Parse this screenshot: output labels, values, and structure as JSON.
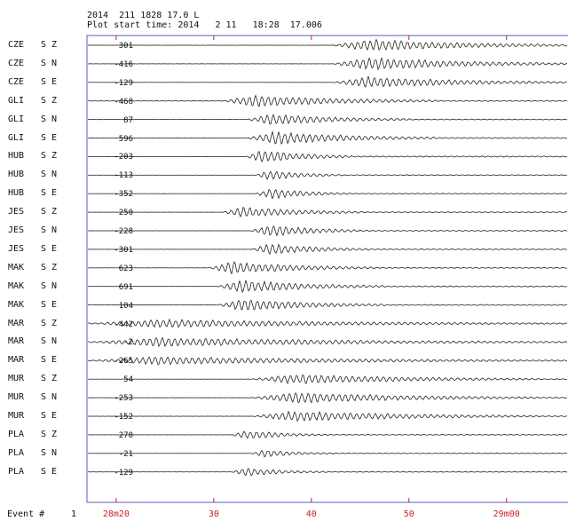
{
  "header": {
    "line1": "2014  211 1828 17.0 L",
    "line2": "Plot start time: 2014   2 11   18:28  17.006"
  },
  "channels": [
    {
      "station": "CZE",
      "comp": "S Z",
      "amp": "301",
      "onset": 0.51,
      "len": 0.55,
      "amp_scale": 0.8,
      "noise": 0.05
    },
    {
      "station": "CZE",
      "comp": "S N",
      "amp": "-416",
      "onset": 0.51,
      "len": 0.6,
      "amp_scale": 0.85,
      "noise": 0.05
    },
    {
      "station": "CZE",
      "comp": "S E",
      "amp": "-129",
      "onset": 0.51,
      "len": 0.55,
      "amp_scale": 0.75,
      "noise": 0.05
    },
    {
      "station": "GLI",
      "comp": "S Z",
      "amp": "-468",
      "onset": 0.28,
      "len": 0.45,
      "amp_scale": 0.8,
      "noise": 0.15
    },
    {
      "station": "GLI",
      "comp": "S N",
      "amp": "87",
      "onset": 0.33,
      "len": 0.35,
      "amp_scale": 0.7,
      "noise": 0.08
    },
    {
      "station": "GLI",
      "comp": "S E",
      "amp": "596",
      "onset": 0.33,
      "len": 0.4,
      "amp_scale": 0.85,
      "noise": 0.1
    },
    {
      "station": "HUB",
      "comp": "S Z",
      "amp": "-203",
      "onset": 0.33,
      "len": 0.22,
      "amp_scale": 0.9,
      "noise": 0.05
    },
    {
      "station": "HUB",
      "comp": "S N",
      "amp": "-113",
      "onset": 0.35,
      "len": 0.18,
      "amp_scale": 0.65,
      "noise": 0.04
    },
    {
      "station": "HUB",
      "comp": "S E",
      "amp": "-352",
      "onset": 0.35,
      "len": 0.2,
      "amp_scale": 0.7,
      "noise": 0.04
    },
    {
      "station": "JES",
      "comp": "S Z",
      "amp": "250",
      "onset": 0.28,
      "len": 0.3,
      "amp_scale": 0.7,
      "noise": 0.05
    },
    {
      "station": "JES",
      "comp": "S N",
      "amp": "-228",
      "onset": 0.34,
      "len": 0.25,
      "amp_scale": 0.75,
      "noise": 0.04
    },
    {
      "station": "JES",
      "comp": "S E",
      "amp": "-301",
      "onset": 0.34,
      "len": 0.25,
      "amp_scale": 0.75,
      "noise": 0.04
    },
    {
      "station": "MAK",
      "comp": "S Z",
      "amp": "623",
      "onset": 0.25,
      "len": 0.35,
      "amp_scale": 0.8,
      "noise": 0.05
    },
    {
      "station": "MAK",
      "comp": "S N",
      "amp": "691",
      "onset": 0.27,
      "len": 0.35,
      "amp_scale": 0.85,
      "noise": 0.05
    },
    {
      "station": "MAK",
      "comp": "S E",
      "amp": "104",
      "onset": 0.27,
      "len": 0.35,
      "amp_scale": 0.8,
      "noise": 0.05
    },
    {
      "station": "MAR",
      "comp": "S Z",
      "amp": "-442",
      "onset": 0.0,
      "len": 1.0,
      "amp_scale": 0.55,
      "noise": 0.4
    },
    {
      "station": "MAR",
      "comp": "S N",
      "amp": "-2",
      "onset": 0.0,
      "len": 1.0,
      "amp_scale": 0.6,
      "noise": 0.35
    },
    {
      "station": "MAR",
      "comp": "S E",
      "amp": "-265",
      "onset": 0.0,
      "len": 1.0,
      "amp_scale": 0.55,
      "noise": 0.3
    },
    {
      "station": "MUR",
      "comp": "S Z",
      "amp": "54",
      "onset": 0.34,
      "len": 0.6,
      "amp_scale": 0.65,
      "noise": 0.05
    },
    {
      "station": "MUR",
      "comp": "S N",
      "amp": "-253",
      "onset": 0.34,
      "len": 0.6,
      "amp_scale": 0.75,
      "noise": 0.05
    },
    {
      "station": "MUR",
      "comp": "S E",
      "amp": "-152",
      "onset": 0.34,
      "len": 0.6,
      "amp_scale": 0.7,
      "noise": 0.05
    },
    {
      "station": "PLA",
      "comp": "S Z",
      "amp": "270",
      "onset": 0.3,
      "len": 0.2,
      "amp_scale": 0.6,
      "noise": 0.04
    },
    {
      "station": "PLA",
      "comp": "S N",
      "amp": "-21",
      "onset": 0.34,
      "len": 0.18,
      "amp_scale": 0.5,
      "noise": 0.04
    },
    {
      "station": "PLA",
      "comp": "S E",
      "amp": "-129",
      "onset": 0.3,
      "len": 0.2,
      "amp_scale": 0.55,
      "noise": 0.05
    }
  ],
  "footer": {
    "event_label": "Event #",
    "event_number": "1"
  },
  "time_axis": {
    "ticks": [
      {
        "label": "28m20",
        "seconds": 20
      },
      {
        "label": "30",
        "seconds": 30
      },
      {
        "label": "40",
        "seconds": 40
      },
      {
        "label": "50",
        "seconds": 50
      },
      {
        "label": "29m00",
        "seconds": 60
      }
    ],
    "start_seconds": 17.006,
    "end_seconds": 66.3
  },
  "colors": {
    "trace": "#222222",
    "axis": "#5a5ad0",
    "tick_text": "#c8202a",
    "tick_mark": "#c8202a"
  }
}
